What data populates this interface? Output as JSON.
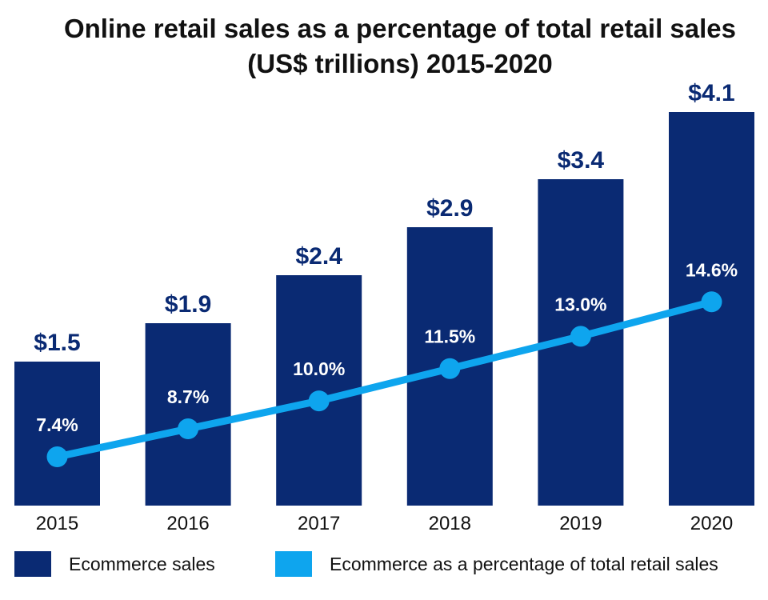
{
  "chart_data": {
    "type": "bar",
    "title": "Online retail sales as a percentage of total retail sales",
    "subtitle": "(US$ trillions) 2015-2020",
    "categories": [
      "2015",
      "2016",
      "2017",
      "2018",
      "2019",
      "2020"
    ],
    "series": [
      {
        "name": "Ecommerce sales",
        "type": "bar",
        "values": [
          1.5,
          1.9,
          2.4,
          2.9,
          3.4,
          4.1
        ],
        "labels": [
          "$1.5",
          "$1.9",
          "$2.4",
          "$2.9",
          "$3.4",
          "$4.1"
        ],
        "color": "#0a2a73"
      },
      {
        "name": "Ecommerce as a percentage of total retail sales",
        "type": "line",
        "values": [
          7.4,
          8.7,
          10.0,
          11.5,
          13.0,
          14.6
        ],
        "labels": [
          "7.4%",
          "8.7%",
          "10.0%",
          "11.5%",
          "13.0%",
          "14.6%"
        ],
        "color": "#0ea5ee"
      }
    ],
    "label_color": "#0a2a73",
    "grid": false,
    "legend_position": "bottom"
  }
}
